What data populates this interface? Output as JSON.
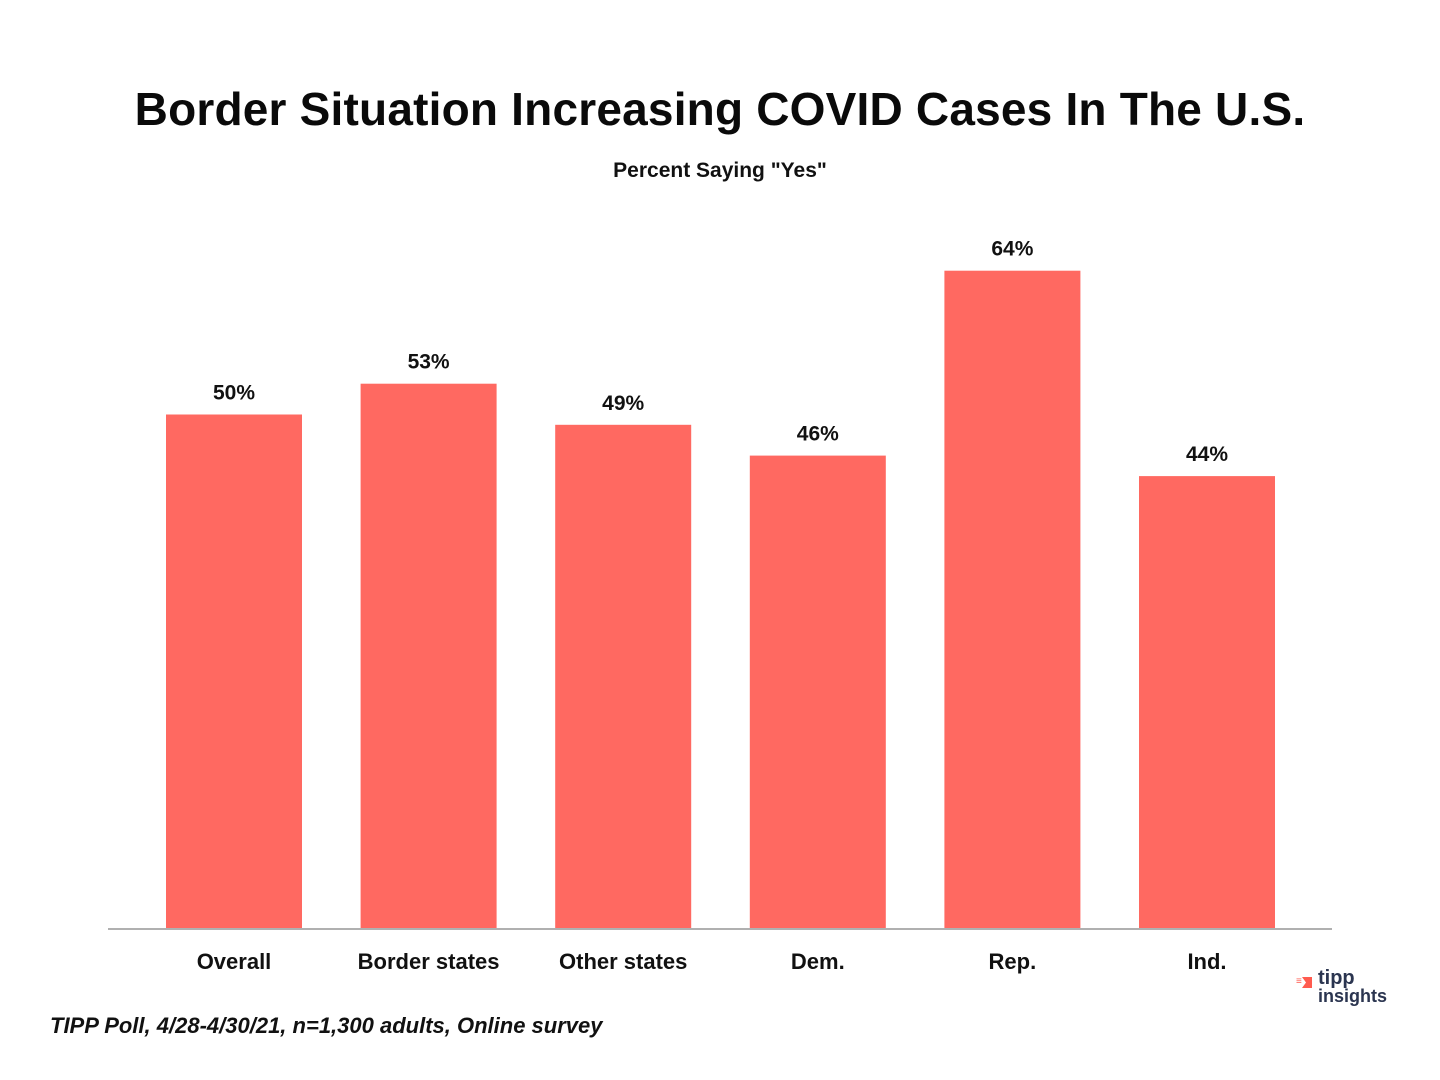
{
  "chart_data": {
    "type": "bar",
    "title": "Border Situation Increasing COVID Cases In The U.S.",
    "subtitle": "Percent Saying \"Yes\"",
    "categories": [
      "Overall",
      "Border states",
      "Other states",
      "Dem.",
      "Rep.",
      "Ind."
    ],
    "values": [
      50,
      53,
      49,
      46,
      64,
      44
    ],
    "data_labels": [
      "50%",
      "53%",
      "49%",
      "46%",
      "64%",
      "44%"
    ],
    "xlabel": "",
    "ylabel": "",
    "ylim": [
      0,
      70
    ],
    "grid": false,
    "legend": "none",
    "bar_color": "#ff6961",
    "axis_color": "#b0b0b0"
  },
  "footer": {
    "source": "TIPP Poll, 4/28-4/30/21, n=1,300 adults, Online survey",
    "logo_line1": "tipp",
    "logo_line2": "insights"
  }
}
